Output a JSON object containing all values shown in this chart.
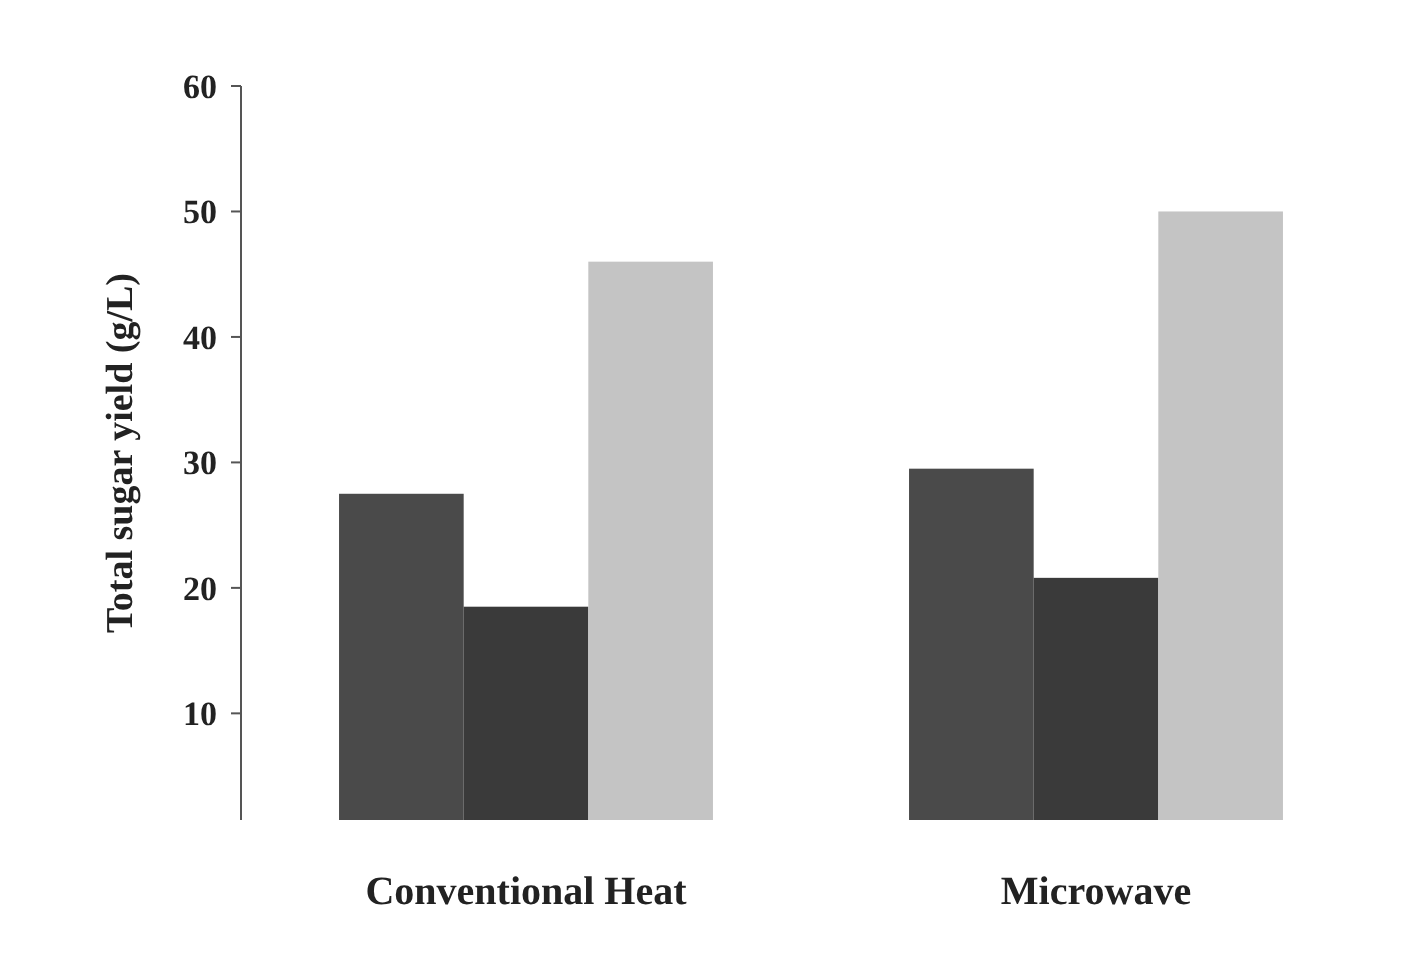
{
  "chart_data": {
    "type": "bar",
    "ylabel": "Total sugar yield (g/L)",
    "categories": [
      "Conventional Heat",
      "Microwave"
    ],
    "series": [
      {
        "color": "#4a4a4a",
        "values": [
          27.5,
          29.5
        ]
      },
      {
        "color": "#3a3a3a",
        "values": [
          18.5,
          20.8
        ]
      },
      {
        "color": "#c4c4c4",
        "values": [
          46,
          50
        ]
      }
    ],
    "ylim": [
      1.5,
      60
    ],
    "yticks": [
      10,
      20,
      30,
      40,
      50,
      60
    ],
    "grid": false
  }
}
